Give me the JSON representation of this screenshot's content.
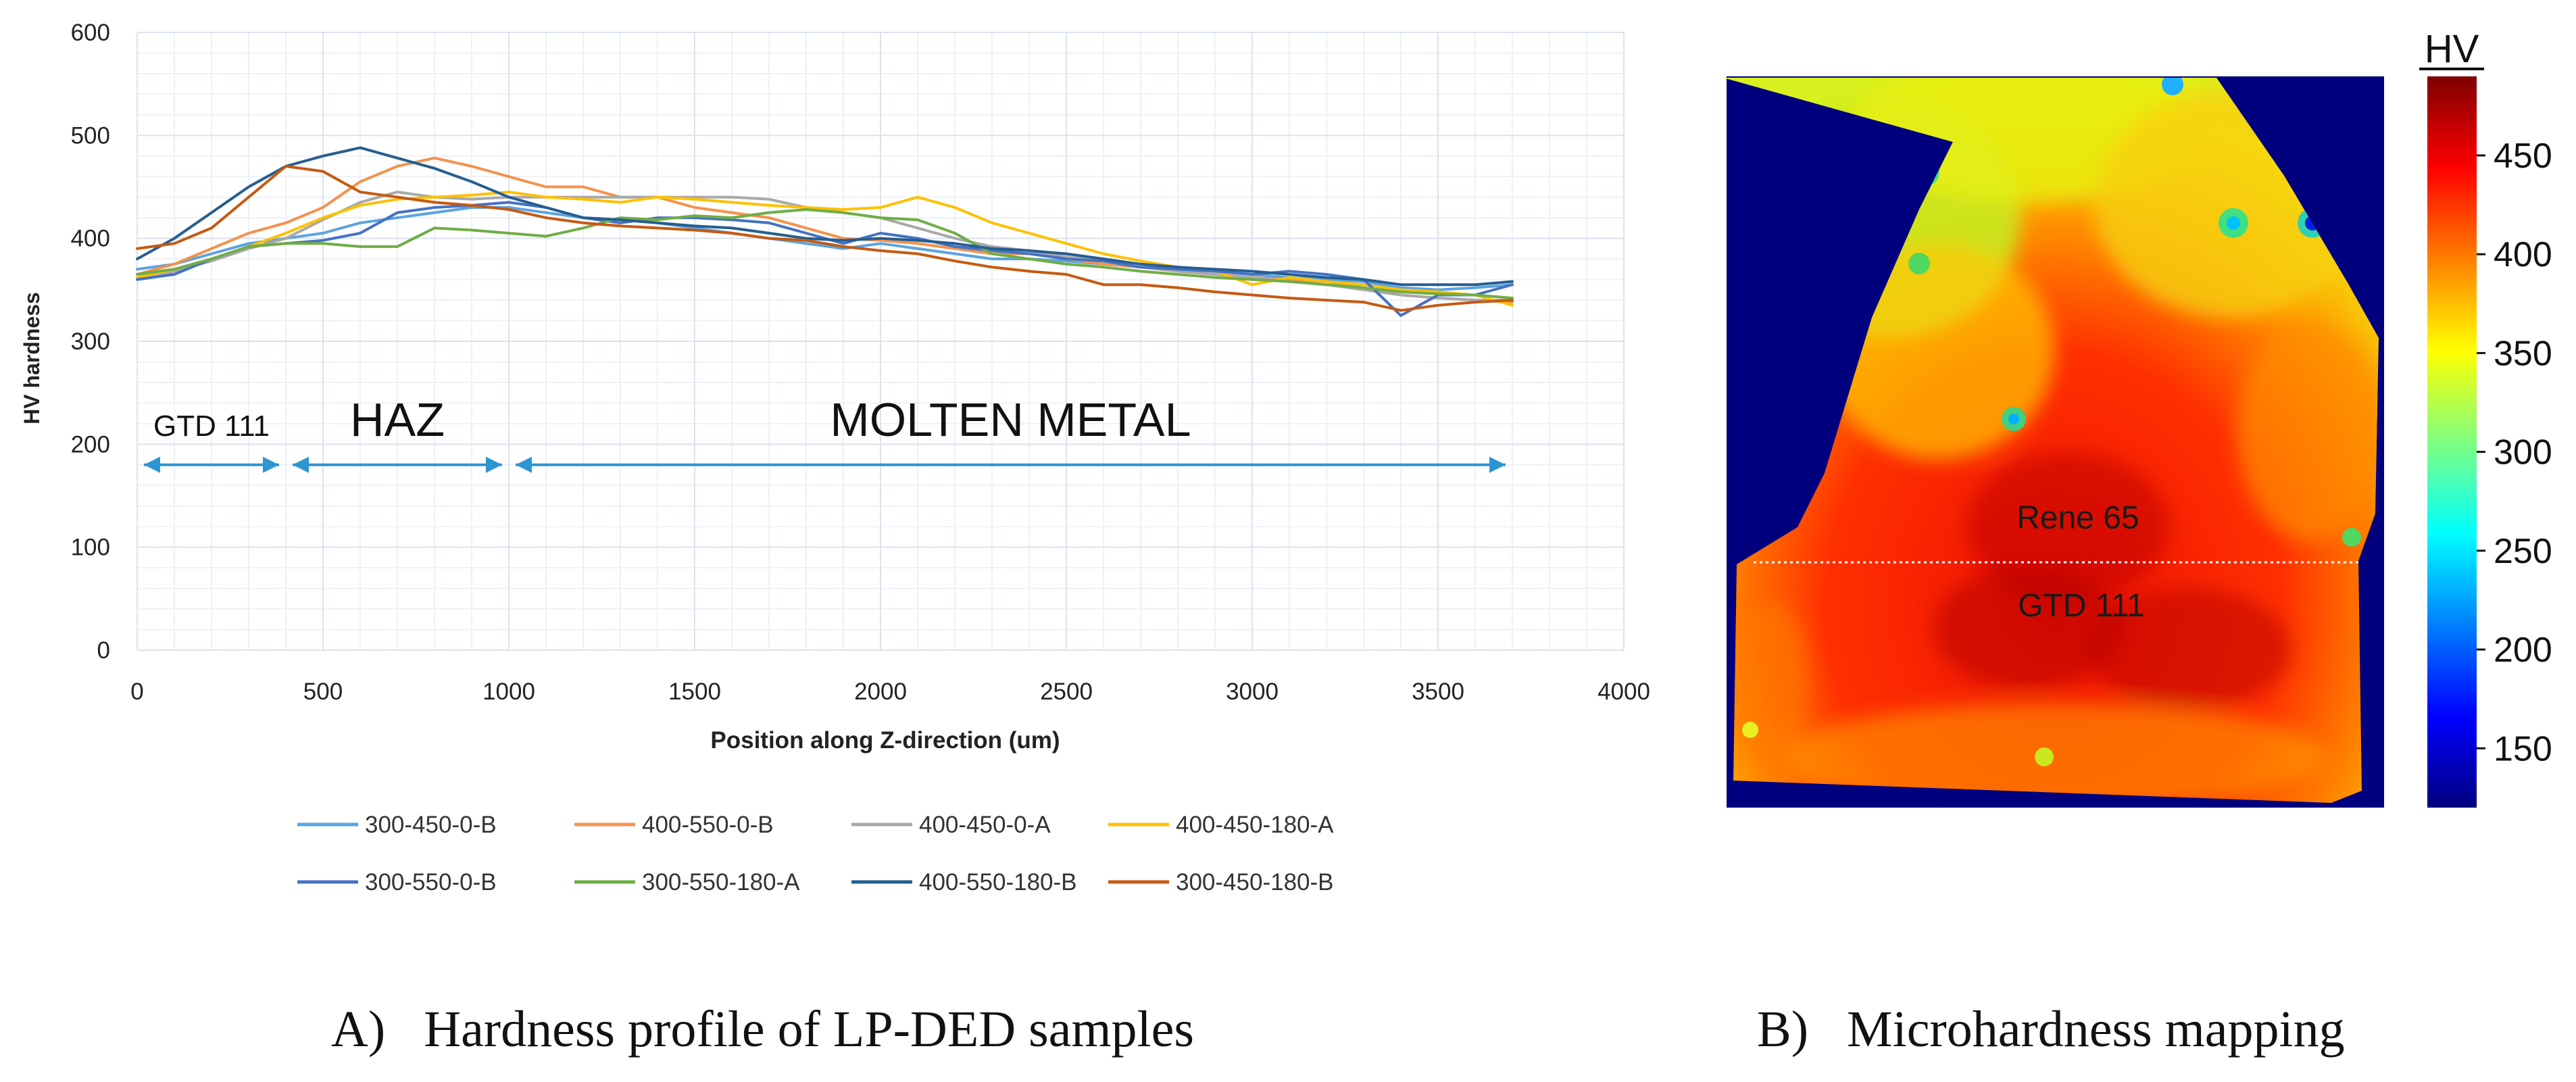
{
  "captions": {
    "a": "A)   Hardness profile of LP-DED samples",
    "b": "B)   Microhardness mapping"
  },
  "chart_data": [
    {
      "type": "line",
      "title": "",
      "xlabel": "Position along Z-direction (um)",
      "ylabel": "HV hardness",
      "xlim": [
        0,
        4000
      ],
      "ylim": [
        0,
        600
      ],
      "xticks": [
        0,
        500,
        1000,
        1500,
        2000,
        2500,
        3000,
        3500,
        4000
      ],
      "yticks": [
        0,
        100,
        200,
        300,
        400,
        500,
        600
      ],
      "grid": true,
      "legend_position": "bottom",
      "x": [
        0,
        100,
        200,
        300,
        400,
        500,
        600,
        700,
        800,
        900,
        1000,
        1100,
        1200,
        1300,
        1400,
        1500,
        1600,
        1700,
        1800,
        1900,
        2000,
        2100,
        2200,
        2300,
        2400,
        2500,
        2600,
        2700,
        2800,
        2900,
        3000,
        3100,
        3200,
        3300,
        3400,
        3500,
        3600,
        3700
      ],
      "series": [
        {
          "name": "300-450-0-B",
          "color": "#5BA3E0",
          "values": [
            370,
            375,
            385,
            395,
            400,
            405,
            415,
            420,
            425,
            430,
            430,
            425,
            420,
            418,
            415,
            410,
            405,
            400,
            395,
            390,
            395,
            390,
            385,
            380,
            380,
            378,
            375,
            372,
            370,
            368,
            365,
            362,
            360,
            358,
            352,
            350,
            352,
            355
          ]
        },
        {
          "name": "400-550-0-B",
          "color": "#F4924D",
          "values": [
            365,
            375,
            390,
            405,
            415,
            430,
            455,
            470,
            478,
            470,
            460,
            450,
            450,
            440,
            440,
            430,
            425,
            420,
            410,
            400,
            398,
            395,
            390,
            385,
            385,
            380,
            375,
            372,
            368,
            365,
            362,
            360,
            358,
            352,
            345,
            342,
            340,
            338
          ]
        },
        {
          "name": "400-450-0-A",
          "color": "#A9A9A9",
          "values": [
            360,
            368,
            378,
            390,
            400,
            418,
            435,
            445,
            440,
            438,
            440,
            440,
            440,
            440,
            440,
            440,
            440,
            438,
            430,
            425,
            420,
            410,
            400,
            392,
            388,
            382,
            378,
            372,
            368,
            365,
            362,
            358,
            355,
            350,
            345,
            342,
            340,
            340
          ]
        },
        {
          "name": "400-450-180-A",
          "color": "#FFC000",
          "values": [
            362,
            370,
            380,
            392,
            405,
            420,
            432,
            438,
            440,
            442,
            445,
            440,
            438,
            435,
            440,
            438,
            435,
            432,
            430,
            428,
            430,
            440,
            430,
            415,
            405,
            395,
            385,
            378,
            372,
            368,
            355,
            362,
            358,
            355,
            350,
            348,
            345,
            335
          ]
        },
        {
          "name": "300-550-0-B",
          "color": "#4472C4",
          "values": [
            360,
            365,
            380,
            392,
            395,
            398,
            405,
            425,
            430,
            432,
            435,
            430,
            420,
            415,
            420,
            420,
            418,
            415,
            405,
            395,
            405,
            400,
            392,
            388,
            385,
            380,
            378,
            372,
            370,
            368,
            365,
            368,
            365,
            360,
            325,
            345,
            345,
            355
          ]
        },
        {
          "name": "300-550-180-A",
          "color": "#70AD47",
          "values": [
            365,
            370,
            380,
            392,
            395,
            395,
            392,
            392,
            410,
            408,
            405,
            402,
            410,
            420,
            418,
            422,
            420,
            425,
            428,
            425,
            420,
            418,
            405,
            385,
            380,
            375,
            372,
            368,
            365,
            362,
            360,
            358,
            355,
            352,
            348,
            346,
            345,
            342
          ]
        },
        {
          "name": "400-550-180-B",
          "color": "#255E91",
          "values": [
            380,
            400,
            425,
            450,
            470,
            480,
            488,
            478,
            468,
            455,
            440,
            430,
            420,
            418,
            415,
            412,
            410,
            405,
            400,
            398,
            400,
            398,
            395,
            390,
            388,
            385,
            380,
            375,
            372,
            370,
            368,
            365,
            362,
            360,
            355,
            355,
            355,
            358
          ]
        },
        {
          "name": "300-450-180-B",
          "color": "#C55A11",
          "values": [
            390,
            395,
            410,
            440,
            470,
            465,
            445,
            440,
            435,
            432,
            428,
            420,
            415,
            412,
            410,
            408,
            405,
            400,
            398,
            392,
            388,
            385,
            378,
            372,
            368,
            365,
            355,
            355,
            352,
            348,
            345,
            342,
            340,
            338,
            330,
            335,
            338,
            340
          ]
        }
      ],
      "annotations": [
        {
          "text": "GTD 111",
          "x_start": 0,
          "x_end": 400
        },
        {
          "text": "HAZ",
          "x_start": 400,
          "x_end": 1000
        },
        {
          "text": "MOLTEN METAL",
          "x_start": 1000,
          "x_end": 3700
        }
      ]
    },
    {
      "type": "heatmap",
      "colorbar_title": "HV",
      "colorbar_ticks": [
        150,
        200,
        250,
        300,
        350,
        400,
        450
      ],
      "colorbar_range": [
        120,
        490
      ],
      "region_labels": [
        "Rene 65",
        "GTD 111"
      ],
      "background_color": "#00007F"
    }
  ]
}
